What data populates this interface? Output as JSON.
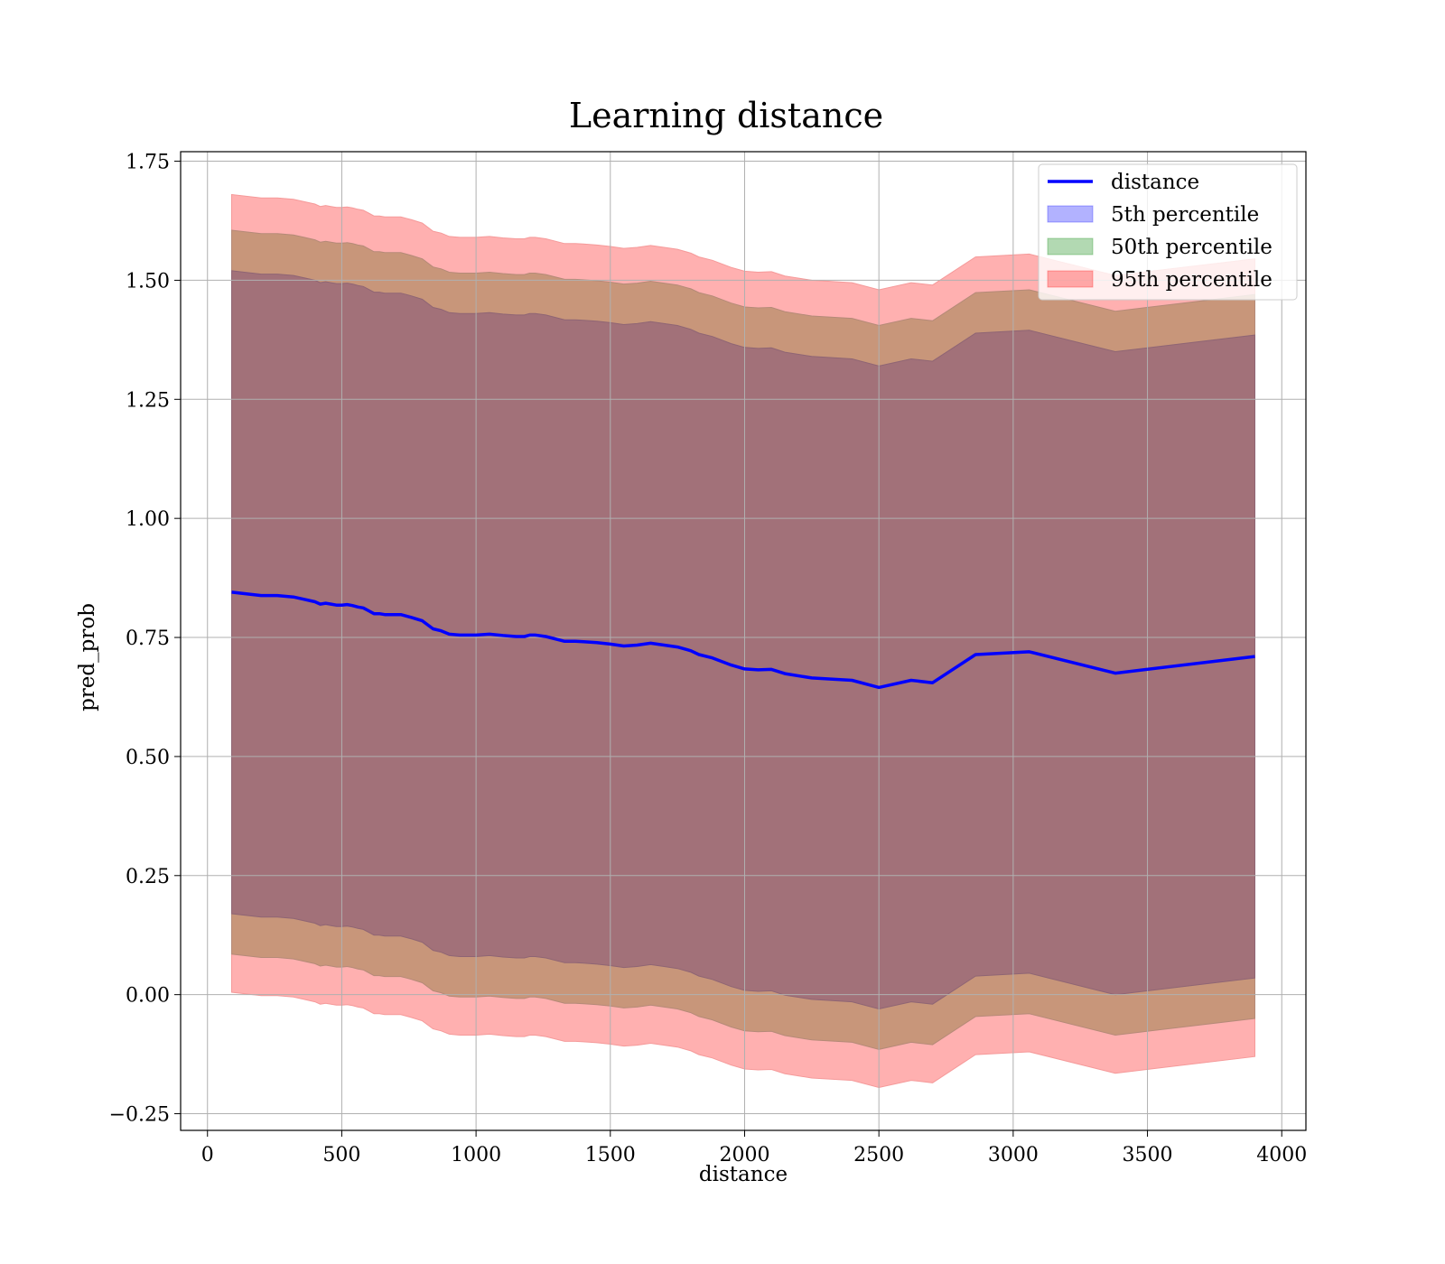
{
  "chart_data": {
    "type": "area",
    "title": "Learning distance",
    "xlabel": "distance",
    "ylabel": "pred_prob",
    "xlim": [
      -100,
      4090
    ],
    "ylim": [
      -0.285,
      1.77
    ],
    "xticks": [
      0,
      500,
      1000,
      1500,
      2000,
      2500,
      3000,
      3500,
      4000
    ],
    "xtick_labels": [
      "0",
      "500",
      "1000",
      "1500",
      "2000",
      "2500",
      "3000",
      "3500",
      "4000"
    ],
    "yticks": [
      -0.25,
      0.0,
      0.25,
      0.5,
      0.75,
      1.0,
      1.25,
      1.5,
      1.75
    ],
    "ytick_labels": [
      "−0.25",
      "0.00",
      "0.25",
      "0.50",
      "0.75",
      "1.00",
      "1.25",
      "1.50",
      "1.75"
    ],
    "grid": true,
    "legend_position": "top-right",
    "x": [
      90,
      200,
      260,
      320,
      360,
      400,
      420,
      440,
      460,
      480,
      500,
      520,
      540,
      560,
      580,
      600,
      620,
      640,
      660,
      700,
      720,
      740,
      760,
      800,
      840,
      870,
      900,
      940,
      1000,
      1050,
      1100,
      1150,
      1180,
      1200,
      1220,
      1260,
      1330,
      1370,
      1400,
      1450,
      1500,
      1550,
      1600,
      1650,
      1700,
      1750,
      1800,
      1830,
      1880,
      1950,
      2000,
      2050,
      2100,
      2150,
      2250,
      2400,
      2500,
      2620,
      2700,
      2860,
      3060,
      3380,
      3900
    ],
    "line": {
      "name": "distance",
      "color": "#0000ff",
      "values": [
        0.845,
        0.838,
        0.838,
        0.835,
        0.83,
        0.825,
        0.82,
        0.822,
        0.82,
        0.818,
        0.818,
        0.819,
        0.817,
        0.814,
        0.812,
        0.806,
        0.8,
        0.8,
        0.798,
        0.798,
        0.798,
        0.795,
        0.792,
        0.785,
        0.768,
        0.764,
        0.757,
        0.755,
        0.755,
        0.757,
        0.754,
        0.752,
        0.752,
        0.755,
        0.755,
        0.752,
        0.742,
        0.742,
        0.741,
        0.739,
        0.736,
        0.732,
        0.734,
        0.738,
        0.734,
        0.73,
        0.722,
        0.714,
        0.707,
        0.692,
        0.684,
        0.682,
        0.683,
        0.674,
        0.665,
        0.66,
        0.645,
        0.66,
        0.655,
        0.714,
        0.72,
        0.675,
        0.71
      ]
    },
    "series": [
      {
        "name": "5th percentile",
        "color": "#0000ff",
        "alpha": 0.3,
        "lower_offset": -0.675,
        "upper_offset": 0.675
      },
      {
        "name": "50th percentile",
        "color": "#008000",
        "alpha": 0.3,
        "lower_offset": -0.675,
        "upper_offset": 0.675
      },
      {
        "name": "95th percentile",
        "color": "#ff0000",
        "alpha": 0.3,
        "lower_offset": -0.84,
        "upper_offset": 0.835
      }
    ],
    "band_colors": {
      "inner": "#a27179",
      "middle": "#c8967a",
      "outer": "#ffb0b0"
    },
    "middle_band_offsets": [
      -0.76,
      0.76
    ]
  }
}
